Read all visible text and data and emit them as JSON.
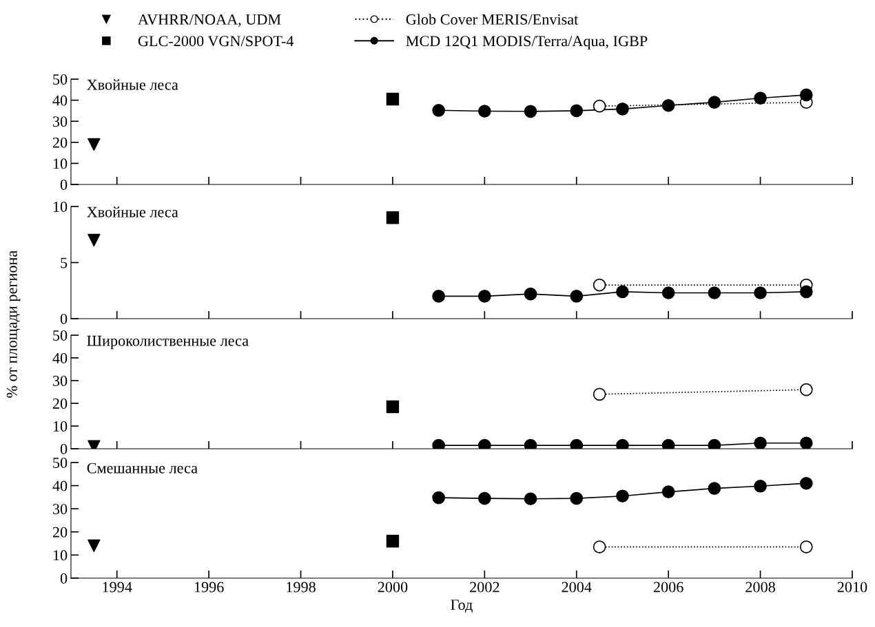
{
  "chart_data": [
    {
      "type": "scatter",
      "title": "Хвойные леса",
      "xlim": [
        1993,
        2010
      ],
      "xticks": [
        1994,
        1996,
        1998,
        2000,
        2002,
        2004,
        2006,
        2008,
        2010
      ],
      "ylim": [
        0,
        50
      ],
      "yticks": [
        0,
        10,
        20,
        30,
        40,
        50
      ],
      "tick_labels": "y",
      "legend": "top",
      "grid": false,
      "series": [
        {
          "name": "AVHRR/NOAA, UDM",
          "marker": "triangle",
          "color": "#000000",
          "x": [
            1993.5
          ],
          "values": [
            19
          ]
        },
        {
          "name": "GLC-2000 VGN/SPOT-4",
          "marker": "square",
          "color": "#000000",
          "x": [
            2000
          ],
          "values": [
            40.5
          ]
        },
        {
          "name": "Glob Cover MERIS/Envisat",
          "type": "line",
          "marker": "circle",
          "line_style": "dotted",
          "color": "#000000",
          "x": [
            2004.5,
            2009
          ],
          "values": [
            37.2,
            39
          ]
        },
        {
          "name": "MCD 12Q1 MODIS/Terra/Aqua, IGBP",
          "type": "line",
          "marker": "circle",
          "line_style": "solid",
          "color": "#000000",
          "x": [
            2001,
            2002,
            2003,
            2004,
            2005,
            2006,
            2007,
            2008,
            2009
          ],
          "values": [
            35.2,
            34.8,
            34.7,
            35,
            35.8,
            37.5,
            39,
            41,
            42.5
          ]
        }
      ]
    },
    {
      "type": "scatter",
      "title": "Хвойные леса",
      "ylabel": "% от площади региона",
      "xlim": [
        1993,
        2010
      ],
      "xticks": [
        1994,
        1996,
        1998,
        2000,
        2002,
        2004,
        2006,
        2008,
        2010
      ],
      "ylim": [
        0,
        10
      ],
      "yticks": [
        0,
        5,
        10
      ],
      "tick_labels": "y",
      "grid": false,
      "series": [
        {
          "marker": "triangle",
          "color": "#000000",
          "x": [
            1993.5
          ],
          "values": [
            7
          ]
        },
        {
          "marker": "square",
          "color": "#000000",
          "x": [
            2000
          ],
          "values": [
            9
          ]
        },
        {
          "type": "line",
          "marker": "circle",
          "line_style": "dotted",
          "color": "#000000",
          "x": [
            2004.5,
            2009
          ],
          "values": [
            3.0,
            3.0
          ]
        },
        {
          "type": "line",
          "marker": "circle",
          "line_style": "solid",
          "color": "#000000",
          "x": [
            2001,
            2002,
            2003,
            2004,
            2005,
            2006,
            2007,
            2008,
            2009
          ],
          "values": [
            2.0,
            2.0,
            2.2,
            2.0,
            2.4,
            2.3,
            2.3,
            2.3,
            2.4
          ]
        }
      ]
    },
    {
      "type": "scatter",
      "title": "Широколиственные леса",
      "xlim": [
        1993,
        2010
      ],
      "xticks": [
        1994,
        1996,
        1998,
        2000,
        2002,
        2004,
        2006,
        2008,
        2010
      ],
      "ylim": [
        0,
        50
      ],
      "yticks": [
        0,
        10,
        20,
        30,
        40,
        50
      ],
      "tick_labels": "y",
      "grid": false,
      "series": [
        {
          "marker": "triangle",
          "color": "#000000",
          "x": [
            1993.5
          ],
          "values": [
            1
          ]
        },
        {
          "marker": "square",
          "color": "#000000",
          "x": [
            2000
          ],
          "values": [
            18.5
          ]
        },
        {
          "type": "line",
          "marker": "circle",
          "line_style": "dotted",
          "color": "#000000",
          "x": [
            2004.5,
            2009
          ],
          "values": [
            24,
            26
          ]
        },
        {
          "type": "line",
          "marker": "circle",
          "line_style": "solid",
          "color": "#000000",
          "x": [
            2001,
            2002,
            2003,
            2004,
            2005,
            2006,
            2007,
            2008,
            2009
          ],
          "values": [
            1.5,
            1.5,
            1.5,
            1.5,
            1.5,
            1.5,
            1.5,
            2.5,
            2.5
          ]
        }
      ]
    },
    {
      "type": "scatter",
      "title": "Смешанные леса",
      "xlabel": "Год",
      "xlim": [
        1993,
        2010
      ],
      "xticks": [
        1994,
        1996,
        1998,
        2000,
        2002,
        2004,
        2006,
        2008,
        2010
      ],
      "ylim": [
        0,
        50
      ],
      "yticks": [
        0,
        10,
        20,
        30,
        40,
        50
      ],
      "grid": false,
      "series": [
        {
          "marker": "triangle",
          "color": "#000000",
          "x": [
            1993.5
          ],
          "values": [
            14
          ]
        },
        {
          "marker": "square",
          "color": "#000000",
          "x": [
            2000
          ],
          "values": [
            16
          ]
        },
        {
          "type": "line",
          "marker": "circle",
          "line_style": "dotted",
          "color": "#000000",
          "x": [
            2004.5,
            2009
          ],
          "values": [
            13.5,
            13.5
          ]
        },
        {
          "type": "line",
          "marker": "circle",
          "line_style": "solid",
          "color": "#000000",
          "x": [
            2001,
            2002,
            2003,
            2004,
            2005,
            2006,
            2007,
            2008,
            2009
          ],
          "values": [
            34.8,
            34.5,
            34.3,
            34.5,
            35.5,
            37.3,
            38.8,
            39.8,
            41
          ]
        }
      ]
    }
  ]
}
